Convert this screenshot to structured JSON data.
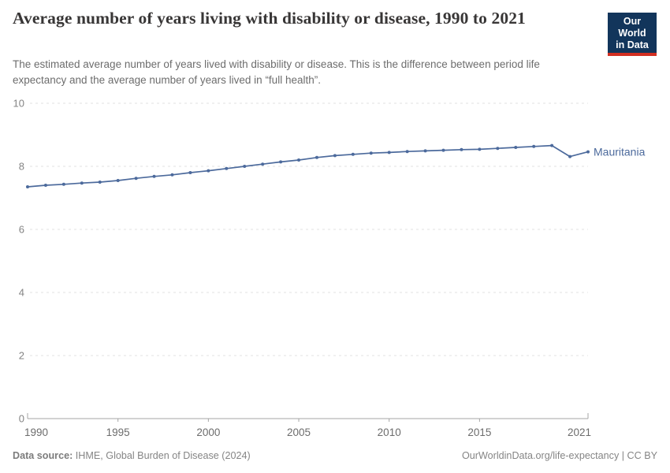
{
  "header": {
    "title": "Average number of years living with disability or disease, 1990 to 2021",
    "subtitle": "The estimated average number of years lived with disability or disease. This is the difference between period life expectancy and the average number of years lived in “full health”.",
    "logo": {
      "line1": "Our World",
      "line2": "in Data",
      "bg_color": "#12355b",
      "accent_color": "#d22e21"
    }
  },
  "chart_data": {
    "type": "line",
    "title": "Average number of years living with disability or disease, 1990 to 2021",
    "xlabel": "",
    "ylabel": "",
    "x": [
      1990,
      1991,
      1992,
      1993,
      1994,
      1995,
      1996,
      1997,
      1998,
      1999,
      2000,
      2001,
      2002,
      2003,
      2004,
      2005,
      2006,
      2007,
      2008,
      2009,
      2010,
      2011,
      2012,
      2013,
      2014,
      2015,
      2016,
      2017,
      2018,
      2019,
      2020,
      2021
    ],
    "series": [
      {
        "name": "Mauritania",
        "color": "#4c6a9c",
        "values": [
          7.35,
          7.4,
          7.43,
          7.47,
          7.5,
          7.55,
          7.62,
          7.68,
          7.73,
          7.8,
          7.86,
          7.93,
          8.0,
          8.07,
          8.14,
          8.2,
          8.28,
          8.34,
          8.38,
          8.42,
          8.44,
          8.47,
          8.49,
          8.51,
          8.53,
          8.54,
          8.57,
          8.6,
          8.63,
          8.66,
          8.31,
          8.46
        ]
      }
    ],
    "xlim": [
      1990,
      2021
    ],
    "ylim": [
      0,
      10
    ],
    "yticks": [
      0,
      2,
      4,
      6,
      8,
      10
    ],
    "xticks": [
      1990,
      1995,
      2000,
      2005,
      2010,
      2015,
      2021
    ],
    "grid": "horizontal-dashed",
    "legend_position": "end-of-line-label",
    "end_label": "Mauritania",
    "colors": {
      "grid_line": "#e0e0e0",
      "axis_line": "#a5a5a5",
      "y_tick_label": "#848484",
      "x_tick_label": "#6c6c6c"
    }
  },
  "footer": {
    "datasource_label": "Data source:",
    "datasource_value": " IHME, Global Burden of Disease (2024)",
    "credit": "OurWorldinData.org/life-expectancy | CC BY"
  }
}
